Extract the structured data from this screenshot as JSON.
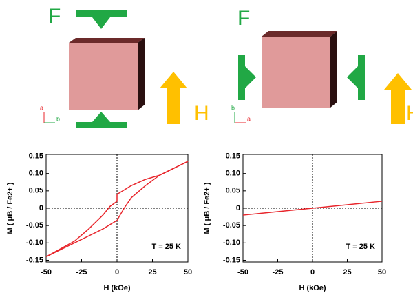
{
  "diagrams": [
    {
      "force": "F",
      "field": "H",
      "axis_vertical": "a",
      "axis_horizontal": "b"
    },
    {
      "force": "F",
      "field": "H",
      "axis_vertical": "b",
      "axis_horizontal": "a"
    }
  ],
  "chart_data": [
    {
      "type": "line",
      "xlabel": "H (kOe)",
      "ylabel": "M ( μB / Fe2+ )",
      "annotation": "T = 25 K",
      "xlim": [
        -50,
        50
      ],
      "xticks": [
        -50,
        -25,
        0,
        25,
        50
      ],
      "ylim": [
        -0.155,
        0.155
      ],
      "yticks": [
        -0.15,
        {
          "value": -0.1,
          "label": "-0.10"
        },
        -0.05,
        0,
        0.05,
        {
          "value": 0.1,
          "label": "0.10"
        },
        0.15
      ],
      "series": [
        {
          "color": "#e8252b",
          "x": [
            50,
            30,
            20,
            10,
            0,
            0,
            -5,
            -10,
            -20,
            -30,
            -50
          ],
          "values": [
            0.135,
            0.095,
            0.083,
            0.065,
            0.04,
            0.02,
            0.005,
            -0.02,
            -0.06,
            -0.095,
            -0.14
          ]
        },
        {
          "color": "#e8252b",
          "x": [
            -50,
            -30,
            -20,
            -10,
            -2,
            0,
            5,
            10,
            20,
            30,
            50
          ],
          "values": [
            -0.14,
            -0.1,
            -0.08,
            -0.06,
            -0.04,
            -0.035,
            0,
            0.03,
            0.065,
            0.095,
            0.135
          ]
        }
      ]
    },
    {
      "type": "line",
      "xlabel": "H (kOe)",
      "ylabel": "M ( μB / Fe2+ )",
      "annotation": "T = 25 K",
      "xlim": [
        -50,
        50
      ],
      "xticks": [
        -50,
        -25,
        0,
        25,
        50
      ],
      "ylim": [
        -0.155,
        0.155
      ],
      "yticks": [
        -0.15,
        {
          "value": -0.1,
          "label": "-0.10"
        },
        -0.05,
        0,
        0.05,
        {
          "value": 0.1,
          "label": "0.10"
        },
        0.15
      ],
      "series": [
        {
          "color": "#e8252b",
          "x": [
            -50,
            -25,
            0,
            25,
            50
          ],
          "values": [
            -0.02,
            -0.01,
            0,
            0.01,
            0.02
          ]
        }
      ]
    }
  ]
}
